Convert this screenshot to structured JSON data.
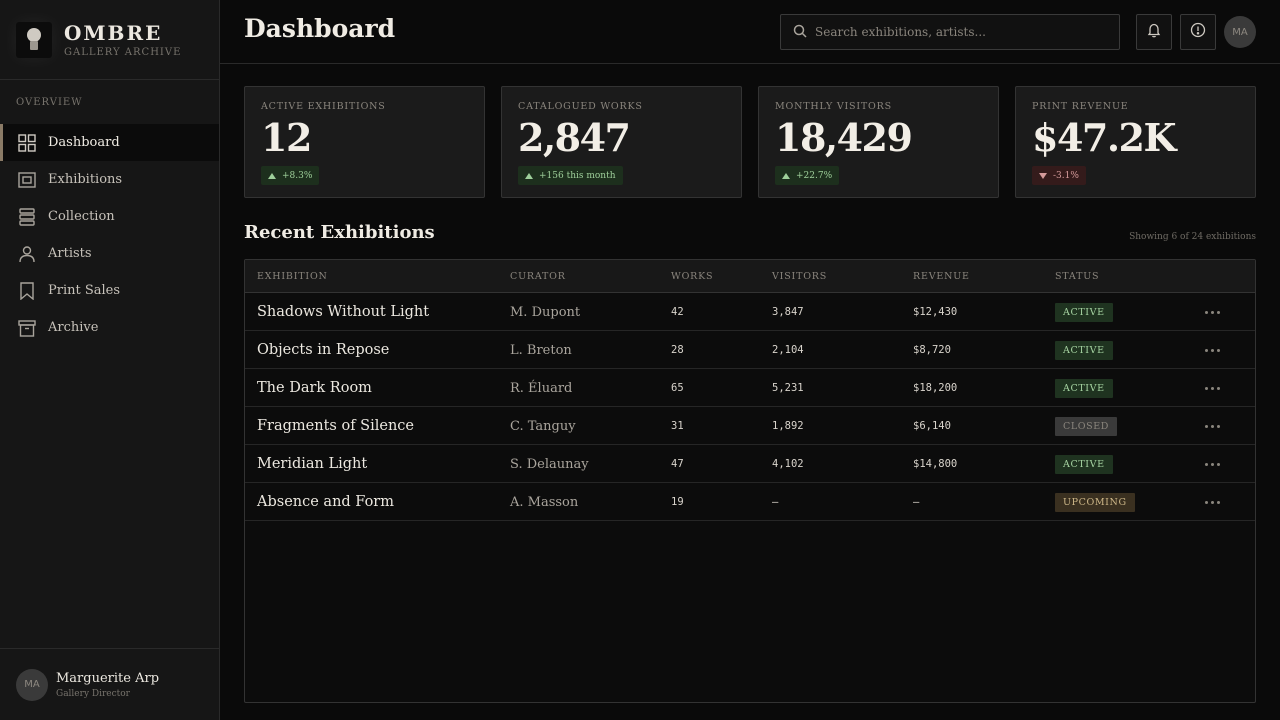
{
  "brand": {
    "name": "OMBRE",
    "subtitle": "GALLERY ARCHIVE"
  },
  "sidebar": {
    "section_label": "OVERVIEW",
    "items": [
      {
        "label": "Dashboard",
        "icon": "grid-icon",
        "active": true
      },
      {
        "label": "Exhibitions",
        "icon": "frame-icon"
      },
      {
        "label": "Collection",
        "icon": "layers-icon"
      },
      {
        "label": "Artists",
        "icon": "person-icon"
      },
      {
        "label": "Print Sales",
        "icon": "bookmark-icon"
      },
      {
        "label": "Archive",
        "icon": "archive-box-icon"
      }
    ]
  },
  "user": {
    "initials": "MA",
    "name": "Marguerite Arp",
    "role": "Gallery Director"
  },
  "header": {
    "title": "Dashboard",
    "search_placeholder": "Search exhibitions, artists...",
    "avatar_initials": "MA"
  },
  "stats": [
    {
      "label": "ACTIVE EXHIBITIONS",
      "value": "12",
      "change": "+8.3%",
      "trend": "up"
    },
    {
      "label": "CATALOGUED WORKS",
      "value": "2,847",
      "change": "+156 this month",
      "trend": "up"
    },
    {
      "label": "MONTHLY VISITORS",
      "value": "18,429",
      "change": "+22.7%",
      "trend": "up"
    },
    {
      "label": "PRINT REVENUE",
      "value": "$47.2K",
      "change": "-3.1%",
      "trend": "down"
    }
  ],
  "recent": {
    "title": "Recent Exhibitions",
    "meta": "Showing 6 of 24 exhibitions",
    "columns": [
      "EXHIBITION",
      "CURATOR",
      "WORKS",
      "VISITORS",
      "REVENUE",
      "STATUS"
    ],
    "rows": [
      {
        "name": "Shadows Without Light",
        "curator": "M. Dupont",
        "works": "42",
        "visitors": "3,847",
        "revenue": "$12,430",
        "status": "ACTIVE"
      },
      {
        "name": "Objects in Repose",
        "curator": "L. Breton",
        "works": "28",
        "visitors": "2,104",
        "revenue": "$8,720",
        "status": "ACTIVE"
      },
      {
        "name": "The Dark Room",
        "curator": "R. Éluard",
        "works": "65",
        "visitors": "5,231",
        "revenue": "$18,200",
        "status": "ACTIVE"
      },
      {
        "name": "Fragments of Silence",
        "curator": "C. Tanguy",
        "works": "31",
        "visitors": "1,892",
        "revenue": "$6,140",
        "status": "CLOSED"
      },
      {
        "name": "Meridian Light",
        "curator": "S. Delaunay",
        "works": "47",
        "visitors": "4,102",
        "revenue": "$14,800",
        "status": "ACTIVE"
      },
      {
        "name": "Absence and Form",
        "curator": "A. Masson",
        "works": "19",
        "visitors": "—",
        "revenue": "—",
        "status": "UPCOMING"
      }
    ]
  }
}
